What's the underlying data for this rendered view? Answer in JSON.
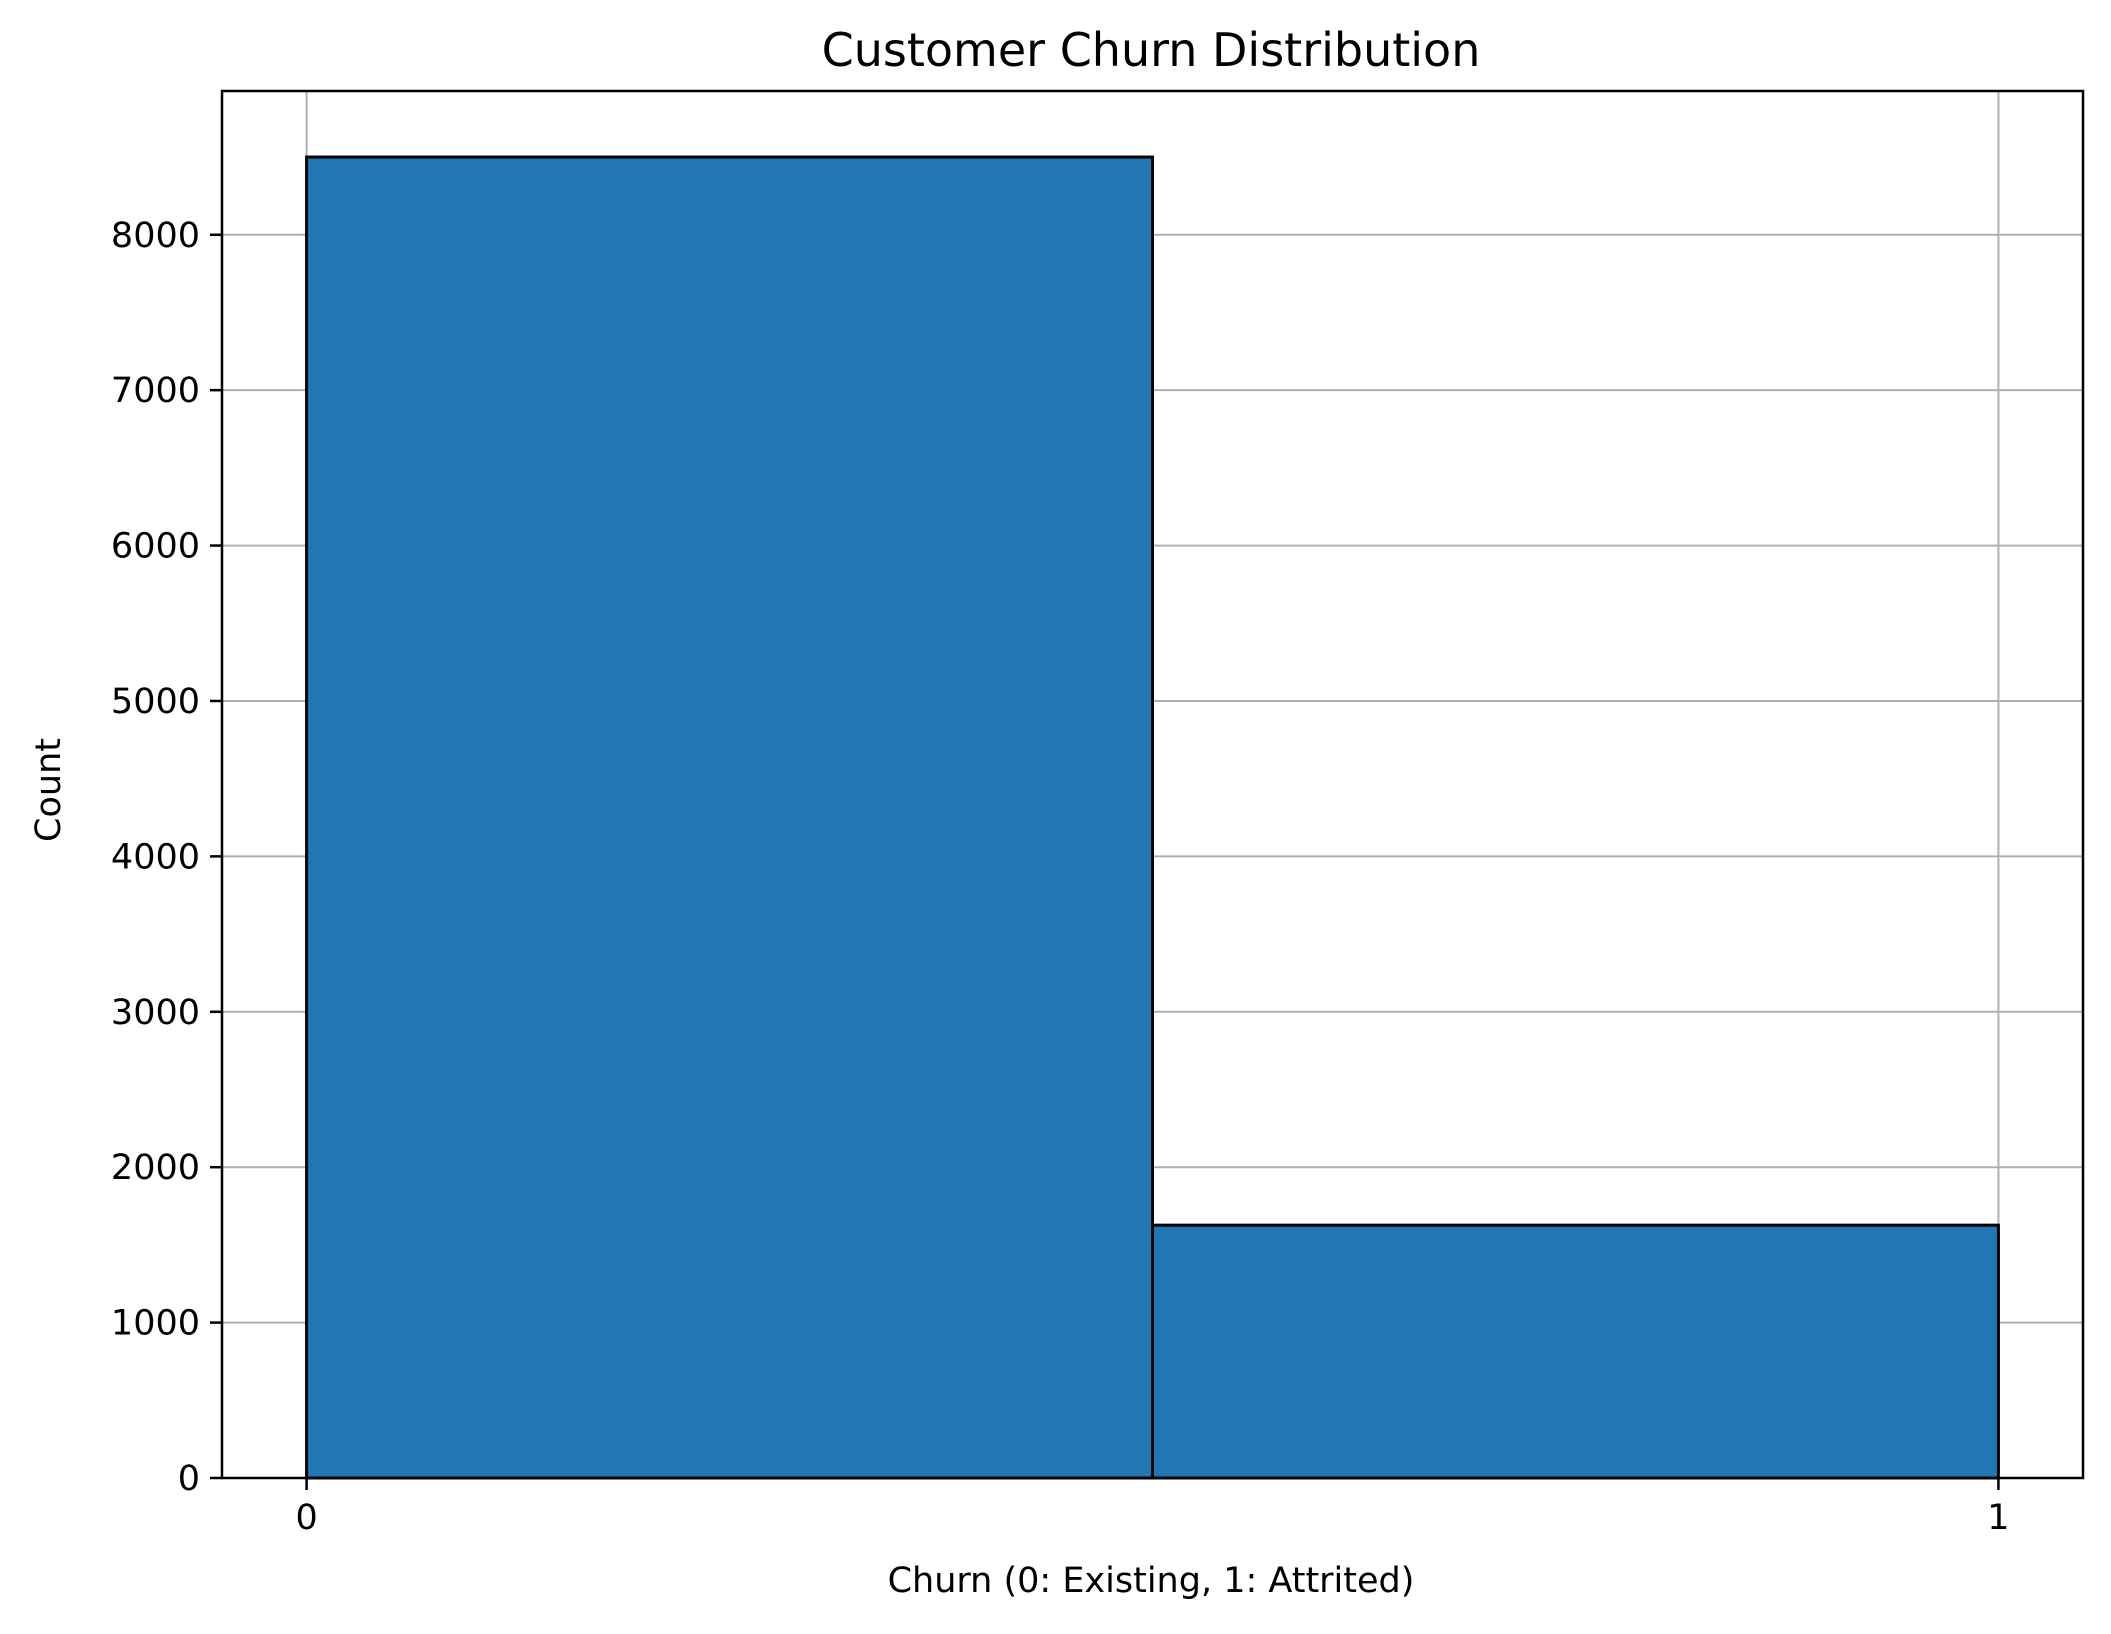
{
  "chart_data": {
    "type": "bar",
    "title": "Customer Churn Distribution",
    "xlabel": "Churn (0: Existing, 1: Attrited)",
    "ylabel": "Count",
    "bins": [
      {
        "start": 0.0,
        "end": 0.5,
        "value": 8500
      },
      {
        "start": 0.5,
        "end": 1.0,
        "value": 1627
      }
    ],
    "xlim": [
      -0.05,
      1.05
    ],
    "ylim": [
      0,
      8925
    ],
    "x_ticks": [
      {
        "value": 0,
        "label": "0"
      },
      {
        "value": 1,
        "label": "1"
      }
    ],
    "y_ticks": [
      {
        "value": 0,
        "label": "0"
      },
      {
        "value": 1000,
        "label": "1000"
      },
      {
        "value": 2000,
        "label": "2000"
      },
      {
        "value": 3000,
        "label": "3000"
      },
      {
        "value": 4000,
        "label": "4000"
      },
      {
        "value": 5000,
        "label": "5000"
      },
      {
        "value": 6000,
        "label": "6000"
      },
      {
        "value": 7000,
        "label": "7000"
      },
      {
        "value": 8000,
        "label": "8000"
      }
    ],
    "grid": true,
    "colors": {
      "bar_fill": "#2077b4",
      "bar_edge": "#000000",
      "grid": "#b0b0b0",
      "axis": "#000000"
    }
  }
}
